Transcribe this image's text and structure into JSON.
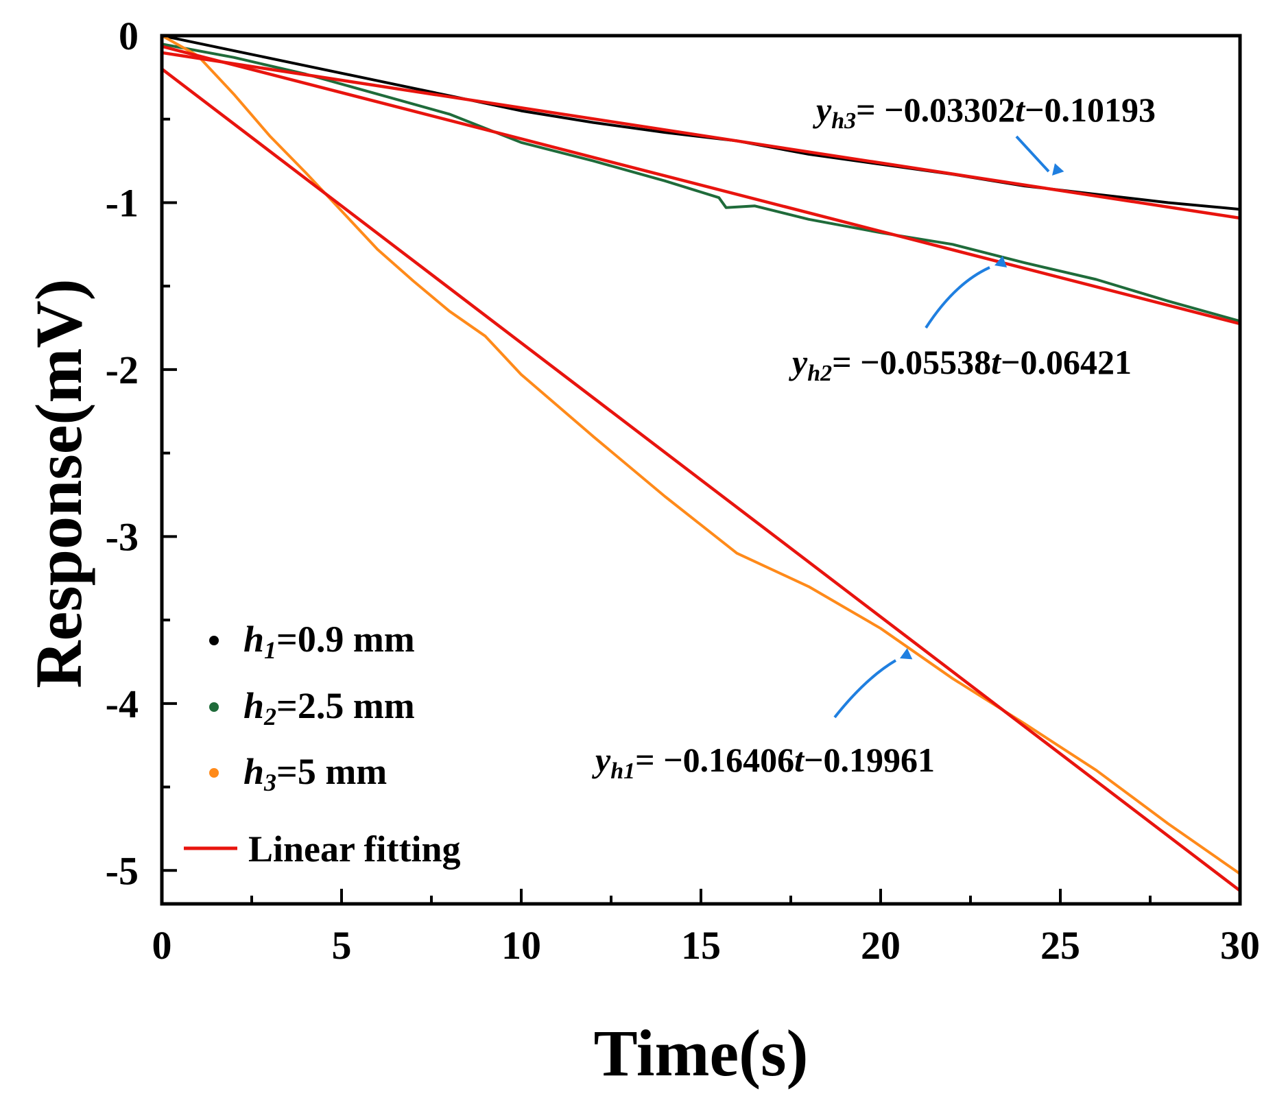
{
  "chart_data": {
    "type": "line",
    "title": "",
    "xlabel": "Time(s)",
    "ylabel": "Response(mV)",
    "xlim": [
      0,
      30
    ],
    "ylim": [
      -5.2,
      0
    ],
    "xticks": [
      0,
      5,
      10,
      15,
      20,
      25,
      30
    ],
    "yticks": [
      0,
      -1,
      -2,
      -3,
      -4,
      -5
    ],
    "xtick_labels": [
      "0",
      "5",
      "10",
      "15",
      "20",
      "25",
      "30"
    ],
    "ytick_labels": [
      "0",
      "-1",
      "-2",
      "-3",
      "-4",
      "-5"
    ],
    "grid": false,
    "legend_position": "bottom-left",
    "series": [
      {
        "name": "h1=0.9 mm",
        "legend_main": "h",
        "legend_sub": "1",
        "legend_rest": "=0.9 mm",
        "color": "#000000",
        "points": [
          [
            0,
            0
          ],
          [
            2,
            -0.09
          ],
          [
            4,
            -0.18
          ],
          [
            6,
            -0.27
          ],
          [
            8,
            -0.36
          ],
          [
            10,
            -0.45
          ],
          [
            12,
            -0.52
          ],
          [
            14,
            -0.58
          ],
          [
            16,
            -0.63
          ],
          [
            18,
            -0.71
          ],
          [
            20,
            -0.77
          ],
          [
            22,
            -0.83
          ],
          [
            24,
            -0.9
          ],
          [
            26,
            -0.95
          ],
          [
            28,
            -1.0
          ],
          [
            30,
            -1.04
          ]
        ]
      },
      {
        "name": "h2=2.5 mm",
        "legend_main": "h",
        "legend_sub": "2",
        "legend_rest": "=2.5 mm",
        "color": "#1f6b3a",
        "points": [
          [
            0,
            -0.05
          ],
          [
            2,
            -0.13
          ],
          [
            4,
            -0.23
          ],
          [
            6,
            -0.35
          ],
          [
            8,
            -0.47
          ],
          [
            10,
            -0.64
          ],
          [
            12,
            -0.75
          ],
          [
            14,
            -0.87
          ],
          [
            15.5,
            -0.97
          ],
          [
            15.7,
            -1.03
          ],
          [
            16.5,
            -1.02
          ],
          [
            18,
            -1.1
          ],
          [
            20,
            -1.18
          ],
          [
            22,
            -1.25
          ],
          [
            24,
            -1.36
          ],
          [
            26,
            -1.46
          ],
          [
            28,
            -1.59
          ],
          [
            30,
            -1.71
          ]
        ]
      },
      {
        "name": "h3=5 mm",
        "legend_main": "h",
        "legend_sub": "3",
        "legend_rest": "=5 mm",
        "color": "#ff8a1a",
        "points": [
          [
            0,
            0
          ],
          [
            1,
            -0.12
          ],
          [
            2,
            -0.35
          ],
          [
            3,
            -0.6
          ],
          [
            4,
            -0.82
          ],
          [
            5,
            -1.05
          ],
          [
            6,
            -1.28
          ],
          [
            7,
            -1.47
          ],
          [
            8,
            -1.65
          ],
          [
            9,
            -1.8
          ],
          [
            10,
            -2.03
          ],
          [
            12,
            -2.4
          ],
          [
            14,
            -2.76
          ],
          [
            16,
            -3.1
          ],
          [
            18,
            -3.3
          ],
          [
            20,
            -3.55
          ],
          [
            22,
            -3.85
          ],
          [
            24,
            -4.12
          ],
          [
            26,
            -4.4
          ],
          [
            28,
            -4.72
          ],
          [
            30,
            -5.02
          ]
        ]
      }
    ],
    "fits": [
      {
        "name": "yh1",
        "slope": -0.16406,
        "intercept": -0.19961,
        "color": "#e8140e"
      },
      {
        "name": "yh2",
        "slope": -0.05538,
        "intercept": -0.06421,
        "color": "#e8140e"
      },
      {
        "name": "yh3",
        "slope": -0.03302,
        "intercept": -0.10193,
        "color": "#e8140e"
      }
    ],
    "fit_legend_label": "Linear fitting",
    "annotations": [
      {
        "id": "yh3",
        "main": "y",
        "sub": "h3",
        "rest": "= −0.03302",
        "t": "t",
        "tail": "−0.10193"
      },
      {
        "id": "yh2",
        "main": "y",
        "sub": "h2",
        "rest": "= −0.05538",
        "t": "t",
        "tail": "−0.06421"
      },
      {
        "id": "yh1",
        "main": "y",
        "sub": "h1",
        "rest": "= −0.16406",
        "t": "t",
        "tail": "−0.19961"
      }
    ],
    "arrow_color": "#1f7fe0"
  }
}
